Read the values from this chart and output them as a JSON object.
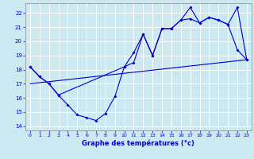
{
  "xlabel": "Graphe des températures (°c)",
  "bg_color": "#cce8f0",
  "line_color": "#0000cc",
  "grid_color": "#ffffff",
  "xlim": [
    -0.5,
    23.5
  ],
  "ylim": [
    13.7,
    22.7
  ],
  "yticks": [
    14,
    15,
    16,
    17,
    18,
    19,
    20,
    21,
    22
  ],
  "xticks": [
    0,
    1,
    2,
    3,
    4,
    5,
    6,
    7,
    8,
    9,
    10,
    11,
    12,
    13,
    14,
    15,
    16,
    17,
    18,
    19,
    20,
    21,
    22,
    23
  ],
  "line1_x": [
    0,
    1,
    2,
    3,
    4,
    5,
    6,
    7,
    8,
    9,
    10,
    11,
    12,
    13,
    14,
    15,
    16,
    17,
    18,
    19,
    20,
    21,
    22,
    23
  ],
  "line1_y": [
    18.2,
    17.5,
    17.0,
    16.2,
    15.5,
    14.8,
    14.6,
    14.4,
    14.9,
    16.1,
    18.2,
    18.5,
    20.5,
    19.0,
    20.9,
    20.9,
    21.5,
    22.4,
    21.3,
    21.7,
    21.5,
    21.2,
    22.4,
    18.7
  ],
  "line2_x": [
    0,
    1,
    2,
    3,
    10,
    11,
    12,
    13,
    14,
    15,
    16,
    17,
    18,
    19,
    20,
    21,
    22,
    23
  ],
  "line2_y": [
    18.2,
    17.5,
    17.0,
    16.2,
    18.2,
    19.2,
    20.5,
    19.0,
    20.9,
    20.9,
    21.5,
    21.6,
    21.3,
    21.7,
    21.5,
    21.2,
    19.4,
    18.7
  ],
  "line3_x": [
    0,
    23
  ],
  "line3_y": [
    17.0,
    18.7
  ]
}
